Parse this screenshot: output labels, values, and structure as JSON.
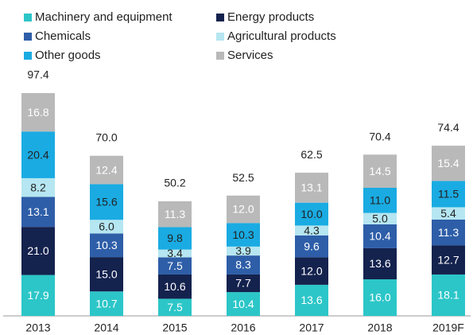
{
  "chart_data": {
    "type": "stacked_bar",
    "categories": [
      "2013",
      "2014",
      "2015",
      "2016",
      "2017",
      "2018",
      "2019F"
    ],
    "series": [
      {
        "name": "Machinery and equipment",
        "color": "#2cc6c8",
        "label_color": "#ffffff",
        "values": [
          17.9,
          10.7,
          7.5,
          10.4,
          13.6,
          16.0,
          18.1
        ],
        "value_labels": [
          "17.9",
          "10.7",
          "7.5",
          "10.4",
          "13.6",
          "16.0",
          "18.1"
        ]
      },
      {
        "name": "Energy products",
        "color": "#14224e",
        "label_color": "#ffffff",
        "values": [
          21.0,
          15.0,
          10.6,
          7.7,
          12.0,
          13.6,
          12.7
        ],
        "value_labels": [
          "21.0",
          "15.0",
          "10.6",
          "7.7",
          "12.0",
          "13.6",
          "12.7"
        ]
      },
      {
        "name": "Chemicals",
        "color": "#2e5ea8",
        "label_color": "#ffffff",
        "values": [
          13.1,
          10.3,
          7.5,
          8.3,
          9.6,
          10.4,
          11.3
        ],
        "value_labels": [
          "13.1",
          "10.3",
          "7.5",
          "8.3",
          "9.6",
          "10.4",
          "11.3"
        ]
      },
      {
        "name": "Agricultural products",
        "color": "#b5e6f1",
        "label_color": "#222222",
        "values": [
          8.2,
          6.0,
          3.4,
          3.9,
          4.3,
          5.0,
          5.4
        ],
        "value_labels": [
          "8.2",
          "6.0",
          "3.4",
          "3.9",
          "4.3",
          "5.0",
          "5.4"
        ]
      },
      {
        "name": "Other goods",
        "color": "#1aabe2",
        "label_color": "#222222",
        "values": [
          20.4,
          15.6,
          9.8,
          10.3,
          10.0,
          11.0,
          11.5
        ],
        "value_labels": [
          "20.4",
          "15.6",
          "9.8",
          "10.3",
          "10.0",
          "11.0",
          "11.5"
        ]
      },
      {
        "name": "Services",
        "color": "#b9b9b9",
        "label_color": "#ffffff",
        "values": [
          16.8,
          12.4,
          11.3,
          12.0,
          13.1,
          14.5,
          15.4
        ],
        "value_labels": [
          "16.8",
          "12.4",
          "11.3",
          "12.0",
          "13.1",
          "14.5",
          "15.4"
        ]
      }
    ],
    "totals": [
      97.4,
      70.0,
      50.2,
      52.5,
      62.5,
      70.4,
      74.4
    ],
    "total_labels": [
      "97.4",
      "70.0",
      "50.2",
      "52.5",
      "62.5",
      "70.4",
      "74.4"
    ]
  }
}
